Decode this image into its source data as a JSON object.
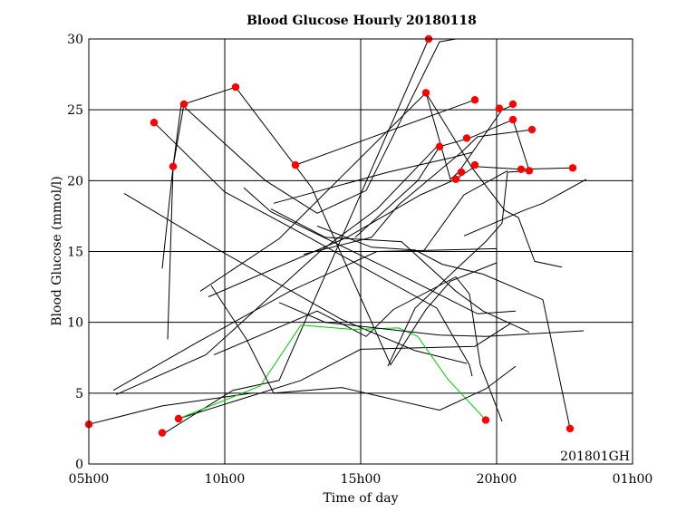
{
  "chart_data": {
    "type": "line",
    "title": "Blood Glucose Hourly 20180118",
    "xlabel": "Time of day",
    "ylabel": "Blood Glucose (mmol/l)",
    "annotation": "201801GH",
    "xlim": [
      5,
      25
    ],
    "ylim": [
      0,
      30
    ],
    "x_ticks": [
      {
        "value": 5,
        "label": "05h00"
      },
      {
        "value": 10,
        "label": "10h00"
      },
      {
        "value": 15,
        "label": "15h00"
      },
      {
        "value": 20,
        "label": "20h00"
      },
      {
        "value": 25,
        "label": "01h00"
      }
    ],
    "y_ticks": [
      {
        "value": 0,
        "label": "0"
      },
      {
        "value": 5,
        "label": "5"
      },
      {
        "value": 10,
        "label": "10"
      },
      {
        "value": 15,
        "label": "15"
      },
      {
        "value": 20,
        "label": "20"
      },
      {
        "value": 25,
        "label": "25"
      },
      {
        "value": 30,
        "label": "30"
      }
    ],
    "grid": true,
    "colors": {
      "line": "#000000",
      "highlight": "#00cc00",
      "marker": "#ff0000"
    },
    "series": [
      {
        "points": [
          [
            5.0,
            2.8
          ],
          [
            7.7,
            4.1
          ],
          [
            11.0,
            5.0
          ]
        ]
      },
      {
        "points": [
          [
            7.9,
            8.8
          ],
          [
            8.1,
            21.0
          ],
          [
            8.5,
            25.4
          ],
          [
            10.4,
            26.6
          ]
        ]
      },
      {
        "points": [
          [
            7.7,
            13.8
          ],
          [
            8.1,
            21.0
          ],
          [
            8.4,
            25.4
          ]
        ]
      },
      {
        "points": [
          [
            7.8,
            2.2
          ],
          [
            10.3,
            5.2
          ],
          [
            12.0,
            5.9
          ],
          [
            17.5,
            30.0
          ]
        ]
      },
      {
        "points": [
          [
            8.3,
            3.2
          ],
          [
            12.8,
            5.9
          ],
          [
            15.0,
            8.1
          ],
          [
            19.2,
            8.3
          ],
          [
            20.5,
            9.9
          ]
        ]
      },
      {
        "points": [
          [
            7.4,
            24.1
          ],
          [
            10.0,
            19.2
          ],
          [
            13.0,
            16.1
          ],
          [
            17.8,
            11.0
          ],
          [
            19.0,
            7.0
          ],
          [
            19.1,
            6.2
          ]
        ]
      },
      {
        "points": [
          [
            10.4,
            26.6
          ],
          [
            13.2,
            19.5
          ],
          [
            16.1,
            7.0
          ],
          [
            17.4,
            10.9
          ],
          [
            18.3,
            12.9
          ],
          [
            20.0,
            14.2
          ]
        ]
      },
      {
        "points": [
          [
            6.3,
            19.1
          ],
          [
            9.7,
            15.2
          ],
          [
            14.3,
            10.2
          ],
          [
            17.0,
            8.0
          ],
          [
            18.9,
            7.1
          ]
        ]
      },
      {
        "points": [
          [
            5.9,
            5.2
          ],
          [
            9.0,
            8.6
          ],
          [
            12.4,
            12.2
          ],
          [
            15.6,
            15.0
          ],
          [
            20.0,
            15.2
          ]
        ]
      },
      {
        "points": [
          [
            9.4,
            11.8
          ],
          [
            14.5,
            16.0
          ],
          [
            17.2,
            19.0
          ],
          [
            18.5,
            20.1
          ],
          [
            19.2,
            21.0
          ],
          [
            20.9,
            20.8
          ],
          [
            22.8,
            20.9
          ]
        ]
      },
      {
        "points": [
          [
            9.6,
            7.7
          ],
          [
            13.4,
            10.8
          ],
          [
            15.2,
            9.0
          ],
          [
            16.2,
            10.9
          ],
          [
            18.5,
            13.2
          ],
          [
            19.0,
            12.0
          ],
          [
            19.4,
            7.0
          ],
          [
            20.2,
            3.0
          ]
        ]
      },
      {
        "points": [
          [
            8.3,
            3.2
          ],
          [
            11.3,
            5.5
          ],
          [
            12.8,
            9.8
          ],
          [
            14.7,
            9.5
          ],
          [
            16.4,
            9.6
          ],
          [
            17.1,
            9.0
          ],
          [
            18.2,
            6.0
          ],
          [
            19.6,
            3.1
          ]
        ],
        "highlight": true
      },
      {
        "points": [
          [
            9.5,
            12.6
          ],
          [
            10.8,
            8.8
          ],
          [
            11.8,
            5.0
          ],
          [
            14.3,
            5.4
          ],
          [
            17.9,
            3.8
          ],
          [
            19.6,
            5.3
          ],
          [
            20.7,
            6.9
          ]
        ]
      },
      {
        "points": [
          [
            9.1,
            12.2
          ],
          [
            12.0,
            15.9
          ],
          [
            17.4,
            26.2
          ],
          [
            18.3,
            20.1
          ],
          [
            18.6,
            20.6
          ],
          [
            20.2,
            25.0
          ],
          [
            20.7,
            25.4
          ]
        ]
      },
      {
        "points": [
          [
            11.8,
            18.4
          ],
          [
            16.0,
            20.6
          ],
          [
            18.3,
            21.6
          ],
          [
            19.1,
            22.0
          ]
        ]
      },
      {
        "points": [
          [
            10.7,
            19.5
          ],
          [
            11.7,
            17.8
          ],
          [
            16.0,
            13.8
          ],
          [
            19.3,
            10.6
          ],
          [
            20.7,
            10.8
          ]
        ]
      },
      {
        "points": [
          [
            6.0,
            4.9
          ],
          [
            9.3,
            7.7
          ],
          [
            13.5,
            15.0
          ],
          [
            15.6,
            18.0
          ],
          [
            17.8,
            22.4
          ]
        ]
      },
      {
        "points": [
          [
            11.7,
            18.0
          ],
          [
            13.7,
            16.0
          ],
          [
            16.5,
            15.7
          ],
          [
            18.5,
            12.2
          ],
          [
            19.5,
            10.8
          ],
          [
            21.2,
            9.3
          ]
        ]
      },
      {
        "points": [
          [
            12.0,
            11.4
          ],
          [
            13.7,
            10.0
          ],
          [
            17.9,
            9.1
          ],
          [
            19.6,
            9.0
          ],
          [
            23.2,
            9.4
          ]
        ]
      },
      {
        "points": [
          [
            12.6,
            21.1
          ],
          [
            19.2,
            25.7
          ]
        ]
      },
      {
        "points": [
          [
            12.9,
            14.8
          ],
          [
            15.4,
            16.0
          ],
          [
            16.4,
            18.3
          ],
          [
            18.7,
            22.0
          ],
          [
            19.3,
            23.1
          ],
          [
            21.3,
            23.6
          ]
        ]
      },
      {
        "points": [
          [
            14.8,
            16.0
          ],
          [
            17.1,
            20.0
          ],
          [
            17.9,
            22.4
          ],
          [
            19.0,
            23.0
          ],
          [
            20.6,
            24.3
          ],
          [
            21.2,
            20.7
          ]
        ]
      },
      {
        "points": [
          [
            16.0,
            6.9
          ],
          [
            17.0,
            11.0
          ],
          [
            18.7,
            14.1
          ],
          [
            19.6,
            15.7
          ],
          [
            20.2,
            17.0
          ],
          [
            20.4,
            20.6
          ],
          [
            21.2,
            20.7
          ]
        ]
      },
      {
        "points": [
          [
            17.4,
            26.2
          ],
          [
            19.1,
            20.9
          ],
          [
            20.3,
            17.9
          ],
          [
            20.8,
            17.4
          ],
          [
            21.4,
            14.3
          ],
          [
            22.4,
            13.9
          ]
        ]
      },
      {
        "points": [
          [
            13.4,
            16.8
          ],
          [
            15.4,
            15.3
          ],
          [
            17.0,
            15.1
          ],
          [
            18.0,
            14.1
          ],
          [
            19.5,
            13.4
          ],
          [
            21.7,
            11.6
          ],
          [
            22.7,
            2.5
          ]
        ]
      },
      {
        "points": [
          [
            17.3,
            15.0
          ],
          [
            18.8,
            19.0
          ],
          [
            20.4,
            20.7
          ]
        ]
      },
      {
        "points": [
          [
            18.8,
            16.1
          ],
          [
            21.0,
            17.9
          ],
          [
            21.7,
            18.4
          ],
          [
            23.3,
            20.1
          ]
        ]
      },
      {
        "points": [
          [
            8.4,
            25.4
          ],
          [
            11.5,
            20.0
          ],
          [
            13.4,
            17.7
          ],
          [
            15.2,
            19.3
          ],
          [
            17.9,
            29.8
          ],
          [
            18.5,
            30.0
          ]
        ]
      }
    ],
    "markers": [
      [
        5.0,
        2.8
      ],
      [
        7.7,
        2.2
      ],
      [
        8.3,
        3.2
      ],
      [
        7.4,
        24.1
      ],
      [
        8.1,
        21.0
      ],
      [
        8.5,
        25.4
      ],
      [
        10.4,
        26.6
      ],
      [
        12.6,
        21.1
      ],
      [
        17.5,
        30.0
      ],
      [
        17.4,
        26.2
      ],
      [
        17.9,
        22.4
      ],
      [
        18.5,
        20.1
      ],
      [
        18.7,
        20.6
      ],
      [
        18.9,
        23.0
      ],
      [
        19.2,
        21.1
      ],
      [
        19.2,
        25.7
      ],
      [
        20.1,
        25.1
      ],
      [
        20.6,
        25.4
      ],
      [
        20.6,
        24.3
      ],
      [
        20.9,
        20.8
      ],
      [
        21.2,
        20.7
      ],
      [
        21.3,
        23.6
      ],
      [
        22.8,
        20.9
      ],
      [
        19.6,
        3.1
      ],
      [
        22.7,
        2.5
      ]
    ]
  }
}
